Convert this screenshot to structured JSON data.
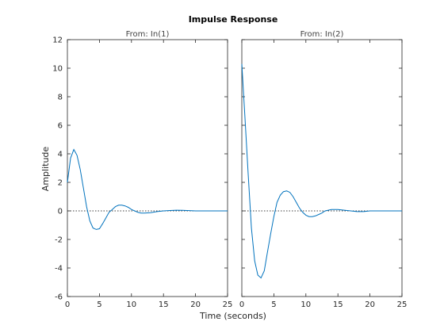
{
  "chart_data": {
    "type": "line",
    "title": "Impulse Response",
    "xlabel": "Time (seconds)",
    "ylabel": "Amplitude",
    "xlim": [
      0,
      25
    ],
    "ylim": [
      -6,
      12
    ],
    "xticks": [
      0,
      5,
      10,
      15,
      20,
      25
    ],
    "yticks": [
      -6,
      -4,
      -2,
      0,
      2,
      4,
      6,
      8,
      10,
      12
    ],
    "xtick_labels": [
      "0",
      "5",
      "10",
      "15",
      "20",
      "25"
    ],
    "ytick_labels": [
      "-6",
      "-4",
      "-2",
      "0",
      "2",
      "4",
      "6",
      "8",
      "10",
      "12"
    ],
    "grid": false,
    "reference_line": 0,
    "line_color": "#0072bd",
    "panels": [
      {
        "subtitle": "From: In(1)",
        "x": [
          0,
          0.5,
          1,
          1.5,
          2,
          2.5,
          3,
          3.5,
          4,
          4.5,
          5,
          5.5,
          6,
          6.5,
          7,
          7.5,
          8,
          8.5,
          9,
          9.5,
          10,
          10.5,
          11,
          11.5,
          12,
          13,
          14,
          15,
          16,
          17,
          18,
          19,
          20,
          21,
          22,
          23,
          24,
          25
        ],
        "y": [
          2.0,
          3.7,
          4.3,
          3.9,
          2.9,
          1.6,
          0.3,
          -0.7,
          -1.2,
          -1.3,
          -1.25,
          -0.9,
          -0.5,
          -0.1,
          0.1,
          0.3,
          0.4,
          0.4,
          0.35,
          0.25,
          0.1,
          0.0,
          -0.1,
          -0.15,
          -0.15,
          -0.12,
          -0.05,
          0.0,
          0.03,
          0.05,
          0.04,
          0.02,
          0.0,
          0.0,
          0.0,
          0.0,
          0.0,
          0.0
        ]
      },
      {
        "subtitle": "From: In(2)",
        "x": [
          0,
          0.5,
          1,
          1.5,
          2,
          2.5,
          3,
          3.5,
          4,
          4.5,
          5,
          5.5,
          6,
          6.5,
          7,
          7.5,
          8,
          8.5,
          9,
          9.5,
          10,
          10.5,
          11,
          11.5,
          12,
          12.5,
          13,
          14,
          15,
          16,
          17,
          18,
          19,
          20,
          21,
          22,
          23,
          24,
          25
        ],
        "y": [
          10.3,
          6.5,
          2.5,
          -1.2,
          -3.5,
          -4.5,
          -4.7,
          -4.2,
          -2.9,
          -1.6,
          -0.4,
          0.6,
          1.1,
          1.35,
          1.4,
          1.3,
          1.0,
          0.6,
          0.2,
          -0.1,
          -0.3,
          -0.4,
          -0.4,
          -0.35,
          -0.25,
          -0.15,
          0.0,
          0.1,
          0.1,
          0.05,
          0.0,
          -0.05,
          -0.05,
          0.0,
          0.0,
          0.0,
          0.0,
          0.0,
          0.0
        ]
      }
    ]
  }
}
